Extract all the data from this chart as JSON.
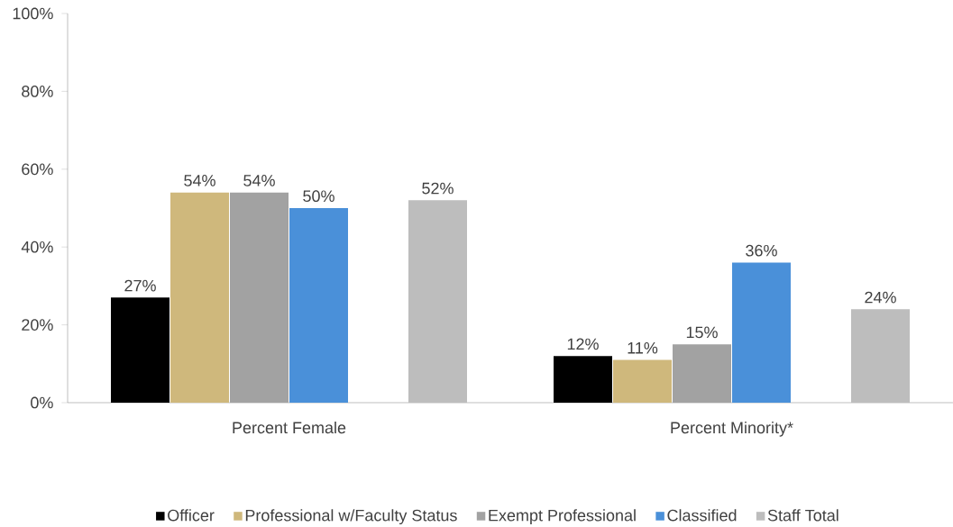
{
  "chart_data": {
    "type": "bar",
    "categories": [
      "Percent Female",
      "Percent Minority*"
    ],
    "series": [
      {
        "name": "Officer",
        "color": "#000000",
        "values": [
          27,
          12
        ],
        "value_labels": [
          "27%",
          "12%"
        ]
      },
      {
        "name": "Professional w/Faculty Status",
        "color": "#cfb87c",
        "values": [
          54,
          11
        ],
        "value_labels": [
          "54%",
          "11%"
        ]
      },
      {
        "name": "Exempt Professional",
        "color": "#a2a2a2",
        "values": [
          54,
          15
        ],
        "value_labels": [
          "54%",
          "15%"
        ]
      },
      {
        "name": "Classified",
        "color": "#4a90d9",
        "values": [
          50,
          36
        ],
        "value_labels": [
          "50%",
          "36%"
        ]
      },
      {
        "name": "Staff Total",
        "color": "#bdbdbd",
        "values": [
          52,
          24
        ],
        "value_labels": [
          "52%",
          "24%"
        ]
      }
    ],
    "ylim": [
      0,
      100
    ],
    "yticks": [
      {
        "value": 0,
        "label": "0%"
      },
      {
        "value": 20,
        "label": "20%"
      },
      {
        "value": 40,
        "label": "40%"
      },
      {
        "value": 60,
        "label": "60%"
      },
      {
        "value": 80,
        "label": "80%"
      },
      {
        "value": 100,
        "label": "100%"
      }
    ],
    "grid": false,
    "legend": "bottom"
  }
}
